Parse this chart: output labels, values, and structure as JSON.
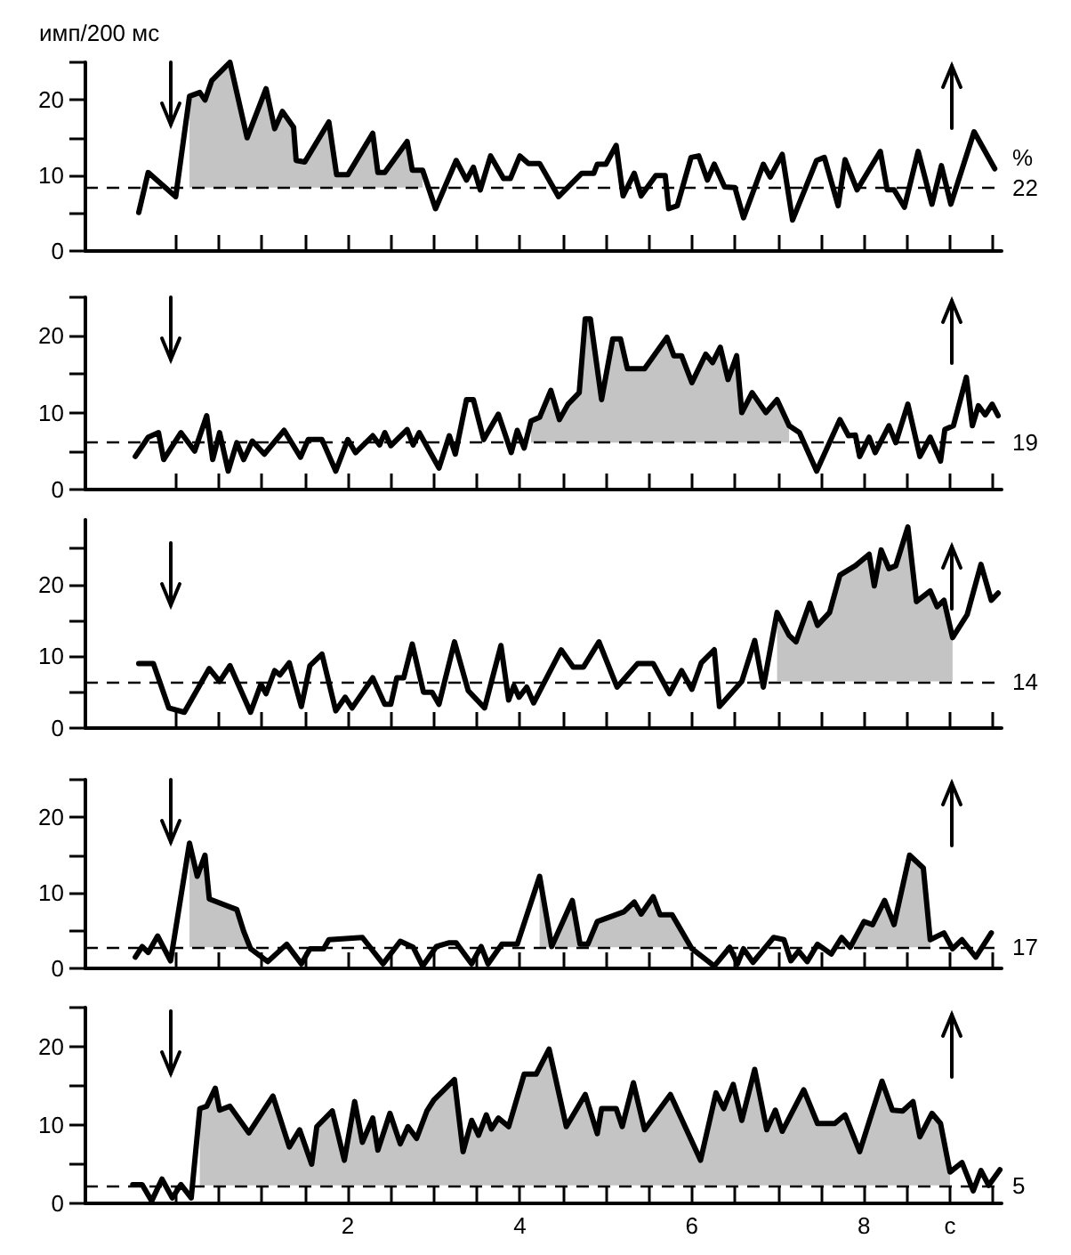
{
  "chart_data": [
    {
      "type": "line",
      "ylabel": "имп/200 мс",
      "annotations": [
        "%",
        "22"
      ],
      "xlim": [
        -1.05,
        9.6
      ],
      "ylim": [
        0,
        25
      ],
      "tick_labels": "y",
      "line_style": "solid",
      "marker": "none",
      "xticks": [
        {
          "value": 0,
          "label": null
        },
        {
          "value": 0.5,
          "label": null
        },
        {
          "value": 1,
          "label": null
        },
        {
          "value": 1.5,
          "label": null
        },
        {
          "value": 2,
          "label": null
        },
        {
          "value": 2.5,
          "label": null
        },
        {
          "value": 3,
          "label": null
        },
        {
          "value": 3.5,
          "label": null
        },
        {
          "value": 4,
          "label": null
        },
        {
          "value": 4.5,
          "label": null
        },
        {
          "value": 5,
          "label": null
        },
        {
          "value": 5.5,
          "label": null
        },
        {
          "value": 6,
          "label": null
        },
        {
          "value": 6.5,
          "label": null
        },
        {
          "value": 7,
          "label": null
        },
        {
          "value": 7.5,
          "label": null
        },
        {
          "value": 8,
          "label": null
        },
        {
          "value": 8.5,
          "label": null
        },
        {
          "value": 9,
          "label": null
        },
        {
          "value": 9.5,
          "label": null
        }
      ],
      "yticks": [
        0,
        {
          "value": 5,
          "label": null
        },
        10,
        {
          "value": 15,
          "label": null
        },
        20,
        {
          "value": 25,
          "label": null
        }
      ],
      "ref_lines": [
        {
          "axis": "y",
          "value": 8.4,
          "line_style": "dashed"
        }
      ],
      "x": [
        -0.43,
        -0.32,
        0,
        0.16,
        0.28,
        0.34,
        0.42,
        0.5,
        0.63,
        0.83,
        1.05,
        1.15,
        1.24,
        1.37,
        1.4,
        1.5,
        1.78,
        1.87,
        2,
        2.29,
        2.35,
        2.43,
        2.69,
        2.75,
        2.87,
        3.02,
        3.26,
        3.38,
        3.46,
        3.54,
        3.66,
        3.81,
        3.89,
        4,
        4.1,
        4.23,
        4.45,
        4.72,
        4.86,
        4.9,
        5,
        5.12,
        5.2,
        5.33,
        5.41,
        5.58,
        5.69,
        5.73,
        5.83,
        5.99,
        6.08,
        6.18,
        6.26,
        6.38,
        6.5,
        6.6,
        6.83,
        6.91,
        7.05,
        7.17,
        7.45,
        7.54,
        7.7,
        7.78,
        7.92,
        8.19,
        8.27,
        8.35,
        8.47,
        8.63,
        8.79,
        8.9,
        9.01,
        9.28,
        9.52
      ],
      "series": [
        {
          "color": "#000000",
          "values": [
            5.1,
            10.4,
            7.2,
            20.5,
            21,
            20,
            22.6,
            23.5,
            25,
            15,
            21.5,
            16.2,
            18.5,
            16.4,
            12,
            11.8,
            17.1,
            10.1,
            10.1,
            15.6,
            10.4,
            10.4,
            14.5,
            10.7,
            10.7,
            5.6,
            12,
            9.4,
            11.1,
            8.1,
            12.6,
            9.6,
            9.6,
            12.6,
            11.6,
            11.6,
            7.2,
            10.3,
            10.3,
            11.5,
            11.5,
            14,
            7.3,
            10.3,
            7.3,
            10,
            10,
            5.6,
            6,
            12.4,
            12.6,
            9.4,
            11.5,
            8.5,
            8.4,
            4.4,
            11.5,
            9.8,
            12.8,
            4.1,
            12,
            12.4,
            6,
            12.1,
            8.1,
            13.2,
            8.1,
            8.1,
            5.8,
            13.2,
            6.2,
            11.3,
            6.2,
            15.8,
            10.9
          ],
          "lower": [
            null,
            null,
            null,
            8.4,
            8.4,
            8.4,
            8.4,
            8.4,
            8.4,
            8.4,
            8.4,
            8.4,
            8.4,
            8.4,
            8.4,
            8.4,
            8.4,
            8.4,
            8.4,
            8.4,
            8.4,
            8.4,
            8.4,
            8.4,
            8.4,
            null,
            null,
            null,
            null,
            null,
            null,
            null,
            null,
            null,
            null,
            null,
            null,
            null,
            null,
            null,
            null,
            null,
            null,
            null,
            null,
            null,
            null,
            null,
            null,
            null,
            null,
            null,
            null,
            null,
            null,
            null,
            null,
            null,
            null,
            null,
            null,
            null,
            null,
            null,
            null,
            null,
            null,
            null,
            null,
            null,
            null,
            null,
            null,
            null,
            null
          ],
          "upper": [
            null,
            null,
            null,
            20.5,
            21,
            20,
            22.6,
            23.5,
            25,
            15,
            21.5,
            16.2,
            18.5,
            16.4,
            12,
            11.8,
            17.1,
            10.1,
            10.1,
            15.6,
            10.4,
            10.4,
            14.5,
            10.7,
            10.7,
            null,
            null,
            null,
            null,
            null,
            null,
            null,
            null,
            null,
            null,
            null,
            null,
            null,
            null,
            null,
            null,
            null,
            null,
            null,
            null,
            null,
            null,
            null,
            null,
            null,
            null,
            null,
            null,
            null,
            null,
            null,
            null,
            null,
            null,
            null,
            null,
            null,
            null,
            null,
            null,
            null,
            null,
            null,
            null,
            null,
            null,
            null,
            null,
            null,
            null
          ]
        }
      ]
    },
    {
      "type": "line",
      "xlim": [
        -1.05,
        9.6
      ],
      "ylim": [
        0,
        25
      ],
      "tick_labels": "y",
      "line_style": "solid",
      "marker": "none",
      "xticks": [
        {
          "value": 0,
          "label": null
        },
        {
          "value": 0.5,
          "label": null
        },
        {
          "value": 1,
          "label": null
        },
        {
          "value": 1.5,
          "label": null
        },
        {
          "value": 2,
          "label": null
        },
        {
          "value": 2.5,
          "label": null
        },
        {
          "value": 3,
          "label": null
        },
        {
          "value": 3.5,
          "label": null
        },
        {
          "value": 4,
          "label": null
        },
        {
          "value": 4.5,
          "label": null
        },
        {
          "value": 5,
          "label": null
        },
        {
          "value": 5.5,
          "label": null
        },
        {
          "value": 6,
          "label": null
        },
        {
          "value": 6.5,
          "label": null
        },
        {
          "value": 7,
          "label": null
        },
        {
          "value": 7.5,
          "label": null
        },
        {
          "value": 8,
          "label": null
        },
        {
          "value": 8.5,
          "label": null
        },
        {
          "value": 9,
          "label": null
        },
        {
          "value": 9.5,
          "label": null
        }
      ],
      "yticks": [
        0,
        {
          "value": 5,
          "label": null
        },
        10,
        {
          "value": 15,
          "label": null
        },
        20,
        {
          "value": 25,
          "label": null
        }
      ],
      "ref_lines": [
        {
          "axis": "y",
          "value": 6.1,
          "line_style": "dashed"
        }
      ],
      "annotations": [
        "19"
      ],
      "x": [
        -0.47,
        -0.32,
        -0.2,
        -0.14,
        0.06,
        0.22,
        0.36,
        0.43,
        0.51,
        0.61,
        0.71,
        0.79,
        0.89,
        1.03,
        1.26,
        1.45,
        1.54,
        1.7,
        1.86,
        2,
        2.09,
        2.29,
        2.37,
        2.43,
        2.5,
        2.69,
        2.76,
        2.83,
        3.06,
        3.18,
        3.25,
        3.38,
        3.46,
        3.58,
        3.75,
        3.9,
        3.97,
        4.05,
        4.13,
        4.23,
        4.36,
        4.46,
        4.56,
        4.69,
        4.76,
        4.82,
        4.95,
        5.08,
        5.17,
        5.25,
        5.45,
        5.71,
        5.79,
        5.88,
        6,
        6.16,
        6.24,
        6.33,
        6.42,
        6.52,
        6.58,
        6.7,
        6.86,
        6.99,
        7.13,
        7.25,
        7.45,
        7.72,
        7.82,
        7.9,
        7.95,
        8.06,
        8.13,
        8.29,
        8.37,
        8.51,
        8.65,
        8.77,
        8.89,
        8.94,
        9.04,
        9.19,
        9.26,
        9.33,
        9.41,
        9.49,
        9.56
      ],
      "series": [
        {
          "color": "#000000",
          "values": [
            4.3,
            6.8,
            7.4,
            3.9,
            7.4,
            5,
            9.6,
            3.9,
            7.4,
            2.4,
            6.1,
            3.9,
            6.3,
            4.6,
            7.7,
            4.2,
            6.5,
            6.5,
            2.4,
            6.5,
            4.8,
            7,
            5.8,
            7.4,
            5.7,
            7.8,
            5.8,
            7.4,
            2.8,
            7,
            4.6,
            11.7,
            11.7,
            6.5,
            9.8,
            4.8,
            7.7,
            5.4,
            8.9,
            9.4,
            12.9,
            9.1,
            11.1,
            12.6,
            22.2,
            22.2,
            11.7,
            19.6,
            19.6,
            15.7,
            15.7,
            19.8,
            17.4,
            17.4,
            13.9,
            17.6,
            16.5,
            18.5,
            14.3,
            17.4,
            10,
            12.6,
            10,
            11.7,
            8.3,
            7.4,
            2.4,
            9.1,
            7,
            7.1,
            4.3,
            6.8,
            4.8,
            8.3,
            6.1,
            11.1,
            4.3,
            6.8,
            3.7,
            7.8,
            8.3,
            14.6,
            8.3,
            10.9,
            9.7,
            11.1,
            9.6
          ],
          "lower": [
            null,
            null,
            null,
            null,
            null,
            null,
            null,
            null,
            null,
            null,
            null,
            null,
            null,
            null,
            null,
            null,
            null,
            null,
            null,
            null,
            null,
            null,
            null,
            null,
            null,
            null,
            null,
            null,
            null,
            null,
            null,
            null,
            null,
            null,
            null,
            null,
            null,
            null,
            6.1,
            6.1,
            6.1,
            6.1,
            6.1,
            6.1,
            6.1,
            6.1,
            6.1,
            6.1,
            6.1,
            6.1,
            6.1,
            6.1,
            6.1,
            6.1,
            6.1,
            6.1,
            6.1,
            6.1,
            6.1,
            6.1,
            6.1,
            6.1,
            6.1,
            6.1,
            6.1,
            null,
            null,
            null,
            null,
            null,
            null,
            null,
            null,
            null,
            null,
            null,
            null,
            null,
            null,
            null,
            null,
            null,
            null,
            null,
            null,
            null,
            null
          ],
          "upper": [
            null,
            null,
            null,
            null,
            null,
            null,
            null,
            null,
            null,
            null,
            null,
            null,
            null,
            null,
            null,
            null,
            null,
            null,
            null,
            null,
            null,
            null,
            null,
            null,
            null,
            null,
            null,
            null,
            null,
            null,
            null,
            null,
            null,
            null,
            null,
            null,
            null,
            null,
            8.9,
            9.4,
            12.9,
            9.1,
            11.1,
            12.6,
            22.2,
            22.2,
            11.7,
            19.6,
            19.6,
            15.7,
            15.7,
            19.8,
            17.4,
            17.4,
            13.9,
            17.6,
            16.5,
            18.5,
            14.3,
            17.4,
            10,
            12.6,
            10,
            11.7,
            8.3,
            null,
            null,
            null,
            null,
            null,
            null,
            null,
            null,
            null,
            null,
            null,
            null,
            null,
            null,
            null,
            null,
            null,
            null,
            null,
            null,
            null,
            null
          ]
        }
      ]
    },
    {
      "type": "line",
      "xlim": [
        -1.05,
        9.6
      ],
      "ylim": [
        0,
        29
      ],
      "tick_labels": "y",
      "line_style": "solid",
      "marker": "none",
      "xticks": [
        {
          "value": 0,
          "label": null
        },
        {
          "value": 0.5,
          "label": null
        },
        {
          "value": 1,
          "label": null
        },
        {
          "value": 1.5,
          "label": null
        },
        {
          "value": 2,
          "label": null
        },
        {
          "value": 2.5,
          "label": null
        },
        {
          "value": 3,
          "label": null
        },
        {
          "value": 3.5,
          "label": null
        },
        {
          "value": 4,
          "label": null
        },
        {
          "value": 4.5,
          "label": null
        },
        {
          "value": 5,
          "label": null
        },
        {
          "value": 5.5,
          "label": null
        },
        {
          "value": 6,
          "label": null
        },
        {
          "value": 6.5,
          "label": null
        },
        {
          "value": 7,
          "label": null
        },
        {
          "value": 7.5,
          "label": null
        },
        {
          "value": 8,
          "label": null
        },
        {
          "value": 8.5,
          "label": null
        },
        {
          "value": 9,
          "label": null
        },
        {
          "value": 9.5,
          "label": null
        }
      ],
      "yticks": [
        0,
        {
          "value": 5,
          "label": null
        },
        10,
        {
          "value": 15,
          "label": null
        },
        20,
        {
          "value": 25,
          "label": null
        }
      ],
      "ref_lines": [
        {
          "axis": "y",
          "value": 6.5,
          "line_style": "dashed"
        }
      ],
      "annotations": [
        "14"
      ],
      "x": [
        -0.43,
        -0.26,
        -0.08,
        0.1,
        0.39,
        0.51,
        0.63,
        0.87,
        0.99,
        1.05,
        1.15,
        1.21,
        1.32,
        1.46,
        1.56,
        1.7,
        1.86,
        1.97,
        2.05,
        2.29,
        2.43,
        2.5,
        2.57,
        2.65,
        2.75,
        2.88,
        2.98,
        3.06,
        3.24,
        3.4,
        3.59,
        3.78,
        3.87,
        3.93,
        3.99,
        4.08,
        4.16,
        4.48,
        4.62,
        4.74,
        4.92,
        5.13,
        5.37,
        5.55,
        5.74,
        5.88,
        6,
        6.11,
        6.26,
        6.32,
        6.58,
        6.73,
        6.83,
        6.99,
        7.13,
        7.21,
        7.37,
        7.46,
        7.6,
        7.72,
        7.9,
        8.06,
        8.12,
        8.2,
        8.29,
        8.37,
        8.51,
        8.61,
        8.77,
        8.85,
        8.93,
        9.03,
        9.2,
        9.36,
        9.48,
        9.56
      ],
      "series": [
        {
          "color": "#000000",
          "values": [
            9,
            9,
            2.8,
            2.2,
            8.3,
            6.5,
            8.7,
            2.2,
            6.1,
            4.8,
            8,
            7.4,
            9.1,
            3,
            8.7,
            10.3,
            2.4,
            4.3,
            2.8,
            7,
            3.3,
            3.3,
            7,
            7,
            11.7,
            5,
            5,
            3.3,
            12,
            5.2,
            2.8,
            11.5,
            3.9,
            5.9,
            4.3,
            5.7,
            3.5,
            10.9,
            8.5,
            8.5,
            12,
            5.7,
            9,
            9,
            4.8,
            8,
            5.4,
            9.1,
            10.9,
            3,
            6.5,
            12.2,
            5.7,
            16.1,
            12.9,
            12,
            17.4,
            14.3,
            16.1,
            21.3,
            22.6,
            24.2,
            19.8,
            24.8,
            22.2,
            22.6,
            28,
            17.6,
            19.1,
            16.9,
            17.8,
            12.6,
            15.8,
            22.8,
            17.8,
            18.8
          ],
          "lower": [
            null,
            null,
            null,
            null,
            null,
            null,
            null,
            null,
            null,
            null,
            null,
            null,
            null,
            null,
            null,
            null,
            null,
            null,
            null,
            null,
            null,
            null,
            null,
            null,
            null,
            null,
            null,
            null,
            null,
            null,
            null,
            null,
            null,
            null,
            null,
            null,
            null,
            null,
            null,
            null,
            null,
            null,
            null,
            null,
            null,
            null,
            null,
            null,
            null,
            null,
            null,
            null,
            null,
            6.5,
            6.5,
            6.5,
            6.5,
            6.5,
            6.5,
            6.5,
            6.5,
            6.5,
            6.5,
            6.5,
            6.5,
            6.5,
            6.5,
            6.5,
            6.5,
            6.5,
            6.5,
            6.5,
            null,
            null,
            null,
            null
          ],
          "upper": [
            null,
            null,
            null,
            null,
            null,
            null,
            null,
            null,
            null,
            null,
            null,
            null,
            null,
            null,
            null,
            null,
            null,
            null,
            null,
            null,
            null,
            null,
            null,
            null,
            null,
            null,
            null,
            null,
            null,
            null,
            null,
            null,
            null,
            null,
            null,
            null,
            null,
            null,
            null,
            null,
            null,
            null,
            null,
            null,
            null,
            null,
            null,
            null,
            null,
            null,
            null,
            null,
            null,
            16.1,
            12.9,
            12,
            17.4,
            14.3,
            16.1,
            21.3,
            22.6,
            24.2,
            19.8,
            24.8,
            22.2,
            22.6,
            28,
            17.6,
            19.1,
            16.9,
            17.8,
            12.6,
            null,
            null,
            null,
            null
          ]
        }
      ]
    },
    {
      "type": "line",
      "xlim": [
        -1.05,
        9.6
      ],
      "ylim": [
        0,
        25
      ],
      "tick_labels": "y",
      "line_style": "solid",
      "marker": "none",
      "xticks": [
        {
          "value": 0,
          "label": null
        },
        {
          "value": 0.5,
          "label": null
        },
        {
          "value": 1,
          "label": null
        },
        {
          "value": 1.5,
          "label": null
        },
        {
          "value": 2,
          "label": null
        },
        {
          "value": 2.5,
          "label": null
        },
        {
          "value": 3,
          "label": null
        },
        {
          "value": 3.5,
          "label": null
        },
        {
          "value": 4,
          "label": null
        },
        {
          "value": 4.5,
          "label": null
        },
        {
          "value": 5,
          "label": null
        },
        {
          "value": 5.5,
          "label": null
        },
        {
          "value": 6,
          "label": null
        },
        {
          "value": 6.5,
          "label": null
        },
        {
          "value": 7,
          "label": null
        },
        {
          "value": 7.5,
          "label": null
        },
        {
          "value": 8,
          "label": null
        },
        {
          "value": 8.5,
          "label": null
        },
        {
          "value": 9,
          "label": null
        },
        {
          "value": 9.5,
          "label": null
        }
      ],
      "yticks": [
        0,
        {
          "value": 5,
          "label": null
        },
        10,
        {
          "value": 15,
          "label": null
        },
        20,
        {
          "value": 25,
          "label": null
        }
      ],
      "ref_lines": [
        {
          "axis": "y",
          "value": 2.8,
          "line_style": "dashed"
        }
      ],
      "annotations": [
        "17"
      ],
      "x": [
        -0.47,
        -0.39,
        -0.32,
        -0.21,
        -0.06,
        0.16,
        0.25,
        0.34,
        0.39,
        0.71,
        0.79,
        0.87,
        1.07,
        1.29,
        1.46,
        1.56,
        1.72,
        1.78,
        2.17,
        2.41,
        2.61,
        2.76,
        2.87,
        3.03,
        3.18,
        3.26,
        3.44,
        3.55,
        3.63,
        3.79,
        3.97,
        4.23,
        4.37,
        4.61,
        4.7,
        4.79,
        4.9,
        5.21,
        5.33,
        5.41,
        5.55,
        5.63,
        5.77,
        6,
        6.26,
        6.44,
        6.53,
        6.6,
        6.71,
        6.95,
        7.07,
        7.15,
        7.24,
        7.34,
        7.46,
        7.62,
        7.74,
        7.84,
        8,
        8.1,
        8.24,
        8.35,
        8.53,
        8.69,
        8.77,
        8.93,
        9.03,
        9.14,
        9.3,
        9.48
      ],
      "series": [
        {
          "color": "#000000",
          "values": [
            1.5,
            2.9,
            2.1,
            4.3,
            1,
            16.6,
            12.2,
            15,
            9.2,
            7.8,
            4.9,
            2.6,
            0.9,
            3.2,
            0.6,
            2.6,
            2.6,
            3.8,
            4.1,
            0.6,
            3.6,
            2.8,
            0.3,
            2.9,
            3.4,
            3.4,
            0.6,
            2.9,
            0.6,
            3.2,
            3.2,
            12.2,
            2.9,
            9,
            3.2,
            3.2,
            6.2,
            7.5,
            8.8,
            7.2,
            9.5,
            7.1,
            7.1,
            2.6,
            0.3,
            2.8,
            0.6,
            2.6,
            0.8,
            4.1,
            3.8,
            1,
            2.3,
            0.9,
            3.2,
            1.9,
            4.1,
            2.8,
            6.2,
            5.8,
            9,
            5.8,
            15,
            13.3,
            3.8,
            4.7,
            2.6,
            3.8,
            1.5,
            4.7
          ],
          "lower": [
            null,
            null,
            null,
            null,
            null,
            2.8,
            2.8,
            2.8,
            2.8,
            2.8,
            2.8,
            2.8,
            null,
            null,
            null,
            null,
            null,
            null,
            null,
            null,
            null,
            null,
            null,
            null,
            null,
            null,
            null,
            null,
            null,
            null,
            null,
            2.8,
            2.8,
            2.8,
            2.8,
            2.8,
            2.8,
            2.8,
            2.8,
            2.8,
            2.8,
            2.8,
            2.8,
            2.8,
            null,
            null,
            null,
            null,
            null,
            null,
            null,
            null,
            null,
            null,
            null,
            null,
            2.8,
            2.8,
            2.8,
            2.8,
            2.8,
            2.8,
            2.8,
            2.8,
            2.8,
            null,
            null,
            null,
            null,
            null
          ],
          "upper": [
            null,
            null,
            null,
            null,
            null,
            16.6,
            12.2,
            15,
            9.2,
            7.8,
            4.9,
            2.6,
            null,
            null,
            null,
            null,
            null,
            null,
            null,
            null,
            null,
            null,
            null,
            null,
            null,
            null,
            null,
            null,
            null,
            null,
            null,
            12.2,
            2.9,
            9,
            3.2,
            3.2,
            6.2,
            7.5,
            8.8,
            7.2,
            9.5,
            7.1,
            7.1,
            2.6,
            null,
            null,
            null,
            null,
            null,
            null,
            null,
            null,
            null,
            null,
            null,
            null,
            4.1,
            2.8,
            6.2,
            5.8,
            9,
            5.8,
            15,
            13.3,
            3.8,
            null,
            null,
            null,
            null,
            null
          ]
        }
      ]
    },
    {
      "type": "line",
      "xlim": [
        -1.05,
        9.6
      ],
      "ylim": [
        0,
        25
      ],
      "line_style": "solid",
      "marker": "none",
      "xticks": [
        {
          "value": 0,
          "label": null
        },
        {
          "value": 0.5,
          "label": null
        },
        {
          "value": 1,
          "label": null
        },
        {
          "value": 1.5,
          "label": null
        },
        2,
        {
          "value": 2.5,
          "label": null
        },
        {
          "value": 3,
          "label": null
        },
        {
          "value": 3.5,
          "label": null
        },
        4,
        {
          "value": 4.5,
          "label": null
        },
        {
          "value": 5,
          "label": null
        },
        {
          "value": 5.5,
          "label": null
        },
        6,
        {
          "value": 6.5,
          "label": null
        },
        {
          "value": 7,
          "label": null
        },
        {
          "value": 7.5,
          "label": null
        },
        8,
        {
          "value": 8.5,
          "label": null
        },
        {
          "value": 9,
          "label": "с"
        },
        {
          "value": 9.5,
          "label": null
        }
      ],
      "yticks": [
        0,
        {
          "value": 5,
          "label": null
        },
        10,
        {
          "value": 15,
          "label": null
        },
        20,
        {
          "value": 25,
          "label": null
        }
      ],
      "ref_lines": [
        {
          "axis": "y",
          "value": 2.3,
          "line_style": "dashed"
        }
      ],
      "annotations": [
        "5"
      ],
      "x": [
        -0.5,
        -0.39,
        -0.28,
        -0.16,
        -0.04,
        0.06,
        0.18,
        0.28,
        0.36,
        0.46,
        0.51,
        0.63,
        0.85,
        1.13,
        1.32,
        1.44,
        1.58,
        1.64,
        1.82,
        1.96,
        2.08,
        2.17,
        2.29,
        2.35,
        2.49,
        2.61,
        2.7,
        2.8,
        2.92,
        3,
        3.24,
        3.34,
        3.44,
        3.52,
        3.61,
        3.67,
        3.75,
        3.87,
        4.05,
        4.19,
        4.34,
        4.54,
        4.76,
        4.9,
        4.95,
        5.12,
        5.19,
        5.32,
        5.45,
        5.75,
        6.1,
        6.28,
        6.37,
        6.48,
        6.58,
        6.73,
        6.87,
        6.97,
        7.05,
        7.3,
        7.46,
        7.66,
        7.78,
        7.95,
        8.21,
        8.33,
        8.45,
        8.57,
        8.65,
        8.79,
        8.89,
        9,
        9.14,
        9.27,
        9.36,
        9.45,
        9.58
      ],
      "series": [
        {
          "color": "#000000",
          "values": [
            2.4,
            2.4,
            0.3,
            3.1,
            0.7,
            2.4,
            0.7,
            12.1,
            12.4,
            14.7,
            11.9,
            12.4,
            9,
            13.7,
            7.2,
            9.4,
            5,
            9.8,
            11.8,
            5.5,
            13,
            7.8,
            10.9,
            6.8,
            11.5,
            7.6,
            9.8,
            8.3,
            11.8,
            13.2,
            15.8,
            6.6,
            10.6,
            8.7,
            11.3,
            9.5,
            10.9,
            9.8,
            16.5,
            16.5,
            19.7,
            9.8,
            13.9,
            8.9,
            12.1,
            12.1,
            9.8,
            15.4,
            9.4,
            13.9,
            5.5,
            14.1,
            12.1,
            15.2,
            10.6,
            17.1,
            9.4,
            11.9,
            9.2,
            14.5,
            10.2,
            10.2,
            11.3,
            6.6,
            15.6,
            11.9,
            11.8,
            13,
            8.5,
            11.5,
            10.2,
            4,
            5.2,
            1.6,
            4.2,
            2.3,
            4.3
          ],
          "lower": [
            null,
            null,
            null,
            null,
            null,
            null,
            null,
            2.3,
            2.3,
            2.3,
            2.3,
            2.3,
            2.3,
            2.3,
            2.3,
            2.3,
            2.3,
            2.3,
            2.3,
            2.3,
            2.3,
            2.3,
            2.3,
            2.3,
            2.3,
            2.3,
            2.3,
            2.3,
            2.3,
            2.3,
            2.3,
            2.3,
            2.3,
            2.3,
            2.3,
            2.3,
            2.3,
            2.3,
            2.3,
            2.3,
            2.3,
            2.3,
            2.3,
            2.3,
            2.3,
            2.3,
            2.3,
            2.3,
            2.3,
            2.3,
            2.3,
            2.3,
            2.3,
            2.3,
            2.3,
            2.3,
            2.3,
            2.3,
            2.3,
            2.3,
            2.3,
            2.3,
            2.3,
            2.3,
            2.3,
            2.3,
            2.3,
            2.3,
            2.3,
            2.3,
            2.3,
            2.3,
            null,
            null,
            null,
            null,
            null
          ],
          "upper": [
            null,
            null,
            null,
            null,
            null,
            null,
            null,
            12.1,
            12.4,
            14.7,
            11.9,
            12.4,
            9,
            13.7,
            7.2,
            9.4,
            5,
            9.8,
            11.8,
            5.5,
            13,
            7.8,
            10.9,
            6.8,
            11.5,
            7.6,
            9.8,
            8.3,
            11.8,
            13.2,
            15.8,
            6.6,
            10.6,
            8.7,
            11.3,
            9.5,
            10.9,
            9.8,
            16.5,
            16.5,
            19.7,
            9.8,
            13.9,
            8.9,
            12.1,
            12.1,
            9.8,
            15.4,
            9.4,
            13.9,
            5.5,
            14.1,
            12.1,
            15.2,
            10.6,
            17.1,
            9.4,
            11.9,
            9.2,
            14.5,
            10.2,
            10.2,
            11.3,
            6.6,
            15.6,
            11.9,
            11.8,
            13,
            8.5,
            11.5,
            10.2,
            4,
            null,
            null,
            null,
            null,
            null
          ]
        }
      ]
    }
  ]
}
